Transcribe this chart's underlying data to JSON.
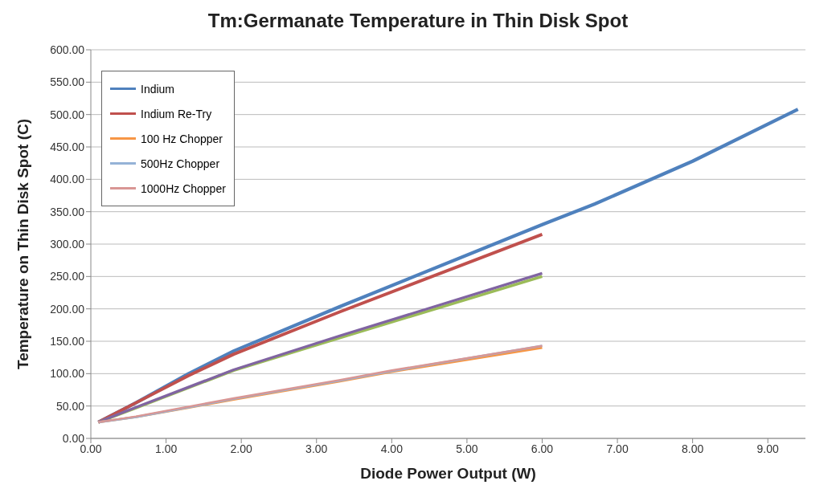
{
  "chart_data": {
    "type": "line",
    "title": "Tm:Germanate Temperature in Thin Disk Spot",
    "xlabel": "Diode Power Output (W)",
    "ylabel": "Temperature on Thin Disk Spot (C)",
    "xlim": [
      0,
      9.5
    ],
    "xticks": [
      {
        "value": 0,
        "label": "0.00"
      },
      {
        "value": 1,
        "label": "1.00"
      },
      {
        "value": 2,
        "label": "2.00"
      },
      {
        "value": 3,
        "label": "3.00"
      },
      {
        "value": 4,
        "label": "4.00"
      },
      {
        "value": 5,
        "label": "5.00"
      },
      {
        "value": 6,
        "label": "6.00"
      },
      {
        "value": 7,
        "label": "7.00"
      },
      {
        "value": 8,
        "label": "8.00"
      },
      {
        "value": 9,
        "label": "9.00"
      }
    ],
    "ylim": [
      0,
      600
    ],
    "yticks": [
      {
        "value": 0,
        "label": "0.00"
      },
      {
        "value": 50,
        "label": "50.00"
      },
      {
        "value": 100,
        "label": "100.00"
      },
      {
        "value": 150,
        "label": "150.00"
      },
      {
        "value": 200,
        "label": "200.00"
      },
      {
        "value": 250,
        "label": "250.00"
      },
      {
        "value": 300,
        "label": "300.00"
      },
      {
        "value": 350,
        "label": "350.00"
      },
      {
        "value": 400,
        "label": "400.00"
      },
      {
        "value": 450,
        "label": "450.00"
      },
      {
        "value": 500,
        "label": "500.00"
      },
      {
        "value": 550,
        "label": "550.00"
      },
      {
        "value": 600,
        "label": "600.00"
      }
    ],
    "grid": "y",
    "legend": "top left",
    "marker": "none",
    "line_style": "solid",
    "series": [
      {
        "name": "Indium",
        "color": "#4f81bd",
        "x": [
          0.1,
          0.6,
          1.3,
          1.9,
          3.3,
          6.0,
          6.7,
          8.0,
          9.4
        ],
        "values": [
          25,
          55,
          100,
          135,
          203,
          330,
          362,
          428,
          508
        ]
      },
      {
        "name": "Indium Re-Try",
        "color": "#c0504d",
        "x": [
          0.1,
          0.6,
          1.3,
          1.9,
          3.3,
          6.0
        ],
        "values": [
          25,
          55,
          97,
          130,
          195,
          315
        ]
      },
      {
        "color": "#9bbb59",
        "x": [
          0.1,
          0.6,
          1.9,
          3.3,
          6.0
        ],
        "values": [
          25,
          47,
          105,
          155,
          250
        ]
      },
      {
        "color": "#8064a2",
        "x": [
          0.1,
          0.6,
          1.9,
          3.3,
          6.0
        ],
        "values": [
          25,
          48,
          106,
          158,
          255
        ]
      },
      {
        "name": "100 Hz Chopper",
        "color": "#f79646",
        "x": [
          0.1,
          0.6,
          1.9,
          3.3,
          4.0,
          6.0
        ],
        "values": [
          25,
          33,
          60,
          88,
          103,
          140
        ]
      },
      {
        "name": "500Hz Chopper",
        "color": "#95b3d7",
        "x": [
          0.1,
          0.6,
          1.9,
          3.3,
          4.0,
          6.0
        ],
        "values": [
          25,
          33,
          61,
          89,
          104,
          143
        ]
      },
      {
        "name": "1000Hz Chopper",
        "color": "#d99694",
        "x": [
          0.1,
          0.6,
          1.9,
          3.3,
          4.0,
          6.0
        ],
        "values": [
          25,
          34,
          62,
          90,
          105,
          143
        ]
      }
    ]
  }
}
